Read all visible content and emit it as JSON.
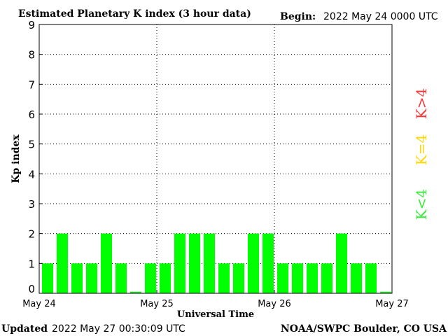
{
  "chart_data": {
    "type": "bar",
    "title": "Estimated Planetary K index (3 hour data)",
    "begin_label": "Begin:",
    "begin_value": "2022 May 24 0000 UTC",
    "xlabel": "Universal Time",
    "ylabel": "Kp index",
    "ylim": [
      0,
      9
    ],
    "yticks": [
      "0",
      "1",
      "2",
      "3",
      "4",
      "5",
      "6",
      "7",
      "8",
      "9"
    ],
    "x_tick_labels": [
      "May 24",
      "May 25",
      "May 26",
      "May 27"
    ],
    "values": [
      1,
      2,
      1,
      1,
      2,
      1,
      0.05,
      1,
      1,
      2,
      2,
      2,
      1,
      1,
      2,
      2,
      1,
      1,
      1,
      1,
      2,
      1,
      1,
      0.05
    ],
    "bar_color": "#00ff00",
    "grid": true,
    "legend": [
      {
        "label": "K<4",
        "color": "#33ee33"
      },
      {
        "label": "K=4",
        "color": "#ffd700"
      },
      {
        "label": "K>4",
        "color": "#ff3333"
      }
    ]
  },
  "footer": {
    "updated_label": "Updated",
    "updated_value": "2022 May 27 00:30:09 UTC",
    "credit": "NOAA/SWPC Boulder, CO USA"
  }
}
